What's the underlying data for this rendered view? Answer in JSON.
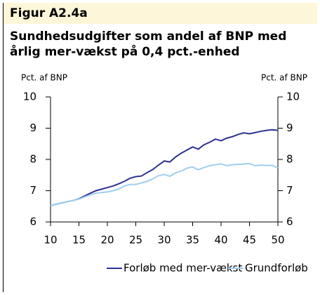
{
  "chart_data": {
    "type": "line",
    "label": "Figur A2.4a",
    "title": "Sundhedsudgifter som andel af BNP med",
    "subtitle": "årlig mer-vækst på 0,4 pct.-enhed",
    "ylabel": "Pct. af BNP",
    "y2label": "Pct. af BNP",
    "x": [
      10,
      11,
      12,
      13,
      14,
      15,
      16,
      17,
      18,
      19,
      20,
      21,
      22,
      23,
      24,
      25,
      26,
      27,
      28,
      29,
      30,
      31,
      32,
      33,
      34,
      35,
      36,
      37,
      38,
      39,
      40,
      41,
      42,
      43,
      44,
      45,
      46,
      47,
      48,
      49,
      50
    ],
    "xlim": [
      10,
      50
    ],
    "xticks": [
      10,
      15,
      20,
      25,
      30,
      35,
      40,
      45,
      50
    ],
    "ylim": [
      6,
      10
    ],
    "yticks": [
      6,
      7,
      8,
      9,
      10
    ],
    "y2lim": [
      6,
      10
    ],
    "y2ticks": [
      6,
      7,
      8,
      9,
      10
    ],
    "series": [
      {
        "name": "Forløb med mer-vækst",
        "color": "#2e3192",
        "values": [
          6.52,
          6.57,
          6.61,
          6.65,
          6.69,
          6.74,
          6.83,
          6.92,
          7.0,
          7.05,
          7.1,
          7.15,
          7.22,
          7.3,
          7.4,
          7.45,
          7.47,
          7.58,
          7.68,
          7.82,
          7.95,
          7.92,
          8.08,
          8.2,
          8.3,
          8.4,
          8.33,
          8.47,
          8.55,
          8.65,
          8.6,
          8.68,
          8.73,
          8.8,
          8.85,
          8.82,
          8.86,
          8.9,
          8.93,
          8.95,
          8.93
        ]
      },
      {
        "name": "Grundforløb",
        "color": "#9fcfee",
        "values": [
          6.52,
          6.57,
          6.61,
          6.65,
          6.69,
          6.73,
          6.8,
          6.87,
          6.92,
          6.94,
          6.96,
          7.0,
          7.05,
          7.15,
          7.2,
          7.2,
          7.25,
          7.3,
          7.38,
          7.48,
          7.52,
          7.46,
          7.57,
          7.63,
          7.72,
          7.76,
          7.67,
          7.74,
          7.8,
          7.83,
          7.86,
          7.8,
          7.83,
          7.84,
          7.85,
          7.87,
          7.8,
          7.82,
          7.81,
          7.81,
          7.73
        ]
      }
    ]
  }
}
